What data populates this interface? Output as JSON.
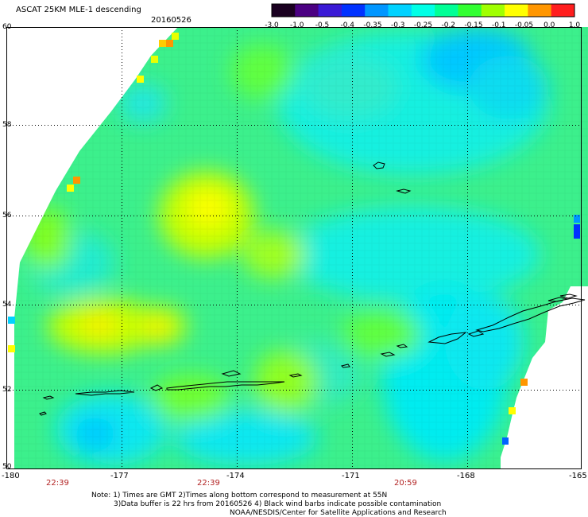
{
  "header": {
    "title": "ASCAT 25KM MLE-1 descending",
    "date": "20160526"
  },
  "colorbar": {
    "tick_labels": [
      "-3.0",
      "-1.0",
      "-0.5",
      "-0.4",
      "-0.35",
      "-0.3",
      "-0.25",
      "-0.2",
      "-0.15",
      "-0.1",
      "-0.05",
      "0.0",
      "1.0"
    ],
    "colors": [
      "#1a0020",
      "#4b0082",
      "#3a1ad6",
      "#0032ff",
      "#0096ff",
      "#00d2ff",
      "#00ffe6",
      "#00ff96",
      "#32ff32",
      "#a0ff00",
      "#ffff00",
      "#ff9600",
      "#ff1e1e"
    ]
  },
  "axes": {
    "lon_labels": [
      "-180",
      "-177",
      "-174",
      "-171",
      "-168",
      "-165"
    ],
    "lat_labels": [
      "60",
      "58",
      "56",
      "54",
      "52",
      "50"
    ],
    "lon_range": [
      -180,
      -165
    ],
    "lat_range": [
      50,
      60
    ]
  },
  "times": [
    "22:39",
    "22:39",
    "20:59"
  ],
  "notes": {
    "line1": "Note: 1) Times are GMT 2)Times along bottom correspond to measurement at 55N",
    "line2": "3)Data buffer is 22 hrs from 20160526 4) Black wind barbs indicate possible contamination",
    "line3": "NOAA/NESDIS/Center for Satellite Applications and Research"
  }
}
